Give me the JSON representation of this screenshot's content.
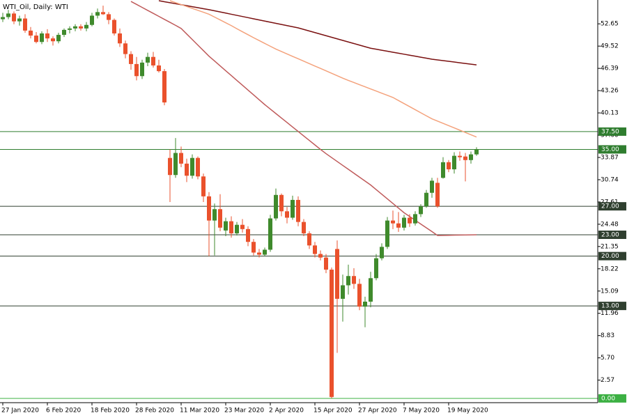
{
  "chart_data": {
    "type": "candlestick",
    "title": "WTI_Oil, Daily:  WTI",
    "categories": [
      "27 Jan 2020",
      null,
      null,
      null,
      null,
      null,
      null,
      null,
      "6 Feb 2020",
      null,
      null,
      null,
      null,
      null,
      null,
      null,
      "18 Feb 2020",
      null,
      null,
      null,
      null,
      null,
      null,
      null,
      "28 Feb 2020",
      null,
      null,
      null,
      null,
      null,
      null,
      null,
      "11 Mar 2020",
      null,
      null,
      null,
      null,
      null,
      null,
      null,
      "23 Mar 2020",
      null,
      null,
      null,
      null,
      null,
      null,
      null,
      "2 Apr 2020",
      null,
      null,
      null,
      null,
      null,
      null,
      null,
      "15 Apr 2020",
      null,
      null,
      null,
      null,
      null,
      null,
      null,
      "27 Apr 2020",
      null,
      null,
      null,
      null,
      null,
      null,
      null,
      "7 May 2020",
      null,
      null,
      null,
      null,
      null,
      null,
      null,
      "19 May 2020",
      null,
      null,
      null,
      null,
      null
    ],
    "open": [
      53.3,
      53.6,
      54.1,
      53.0,
      53.4,
      51.7,
      51.0,
      50.1,
      51.3,
      50.6,
      50.2,
      51.1,
      51.8,
      52.0,
      52.3,
      52.0,
      52.5,
      53.8,
      54.3,
      54.0,
      53.2,
      51.3,
      49.9,
      48.4,
      47.0,
      45.3,
      47.2,
      48.0,
      46.8,
      46.0,
      33.8,
      31.4,
      34.5,
      33.0,
      31.3,
      33.8,
      31.2,
      28.4,
      25.0,
      26.6,
      23.6,
      24.9,
      23.2,
      24.4,
      23.8,
      22.0,
      20.5,
      20.2,
      20.9,
      25.3,
      28.6,
      26.3,
      25.4,
      27.9,
      24.8,
      23.2,
      21.5,
      20.3,
      19.8,
      18.1,
      21.0,
      14.0,
      15.9,
      17.2,
      16.1,
      12.9,
      13.6,
      16.9,
      19.7,
      21.3,
      25.0,
      24.6,
      24.0,
      25.4,
      24.6,
      25.9,
      27.0,
      28.9,
      30.3,
      31.0,
      33.2,
      32.2,
      34.1,
      34.0,
      33.5,
      34.3
    ],
    "high": [
      54.2,
      54.6,
      54.4,
      53.8,
      54.0,
      52.2,
      51.5,
      51.6,
      51.9,
      50.9,
      51.4,
      52.0,
      52.3,
      52.6,
      52.6,
      52.9,
      54.2,
      54.8,
      55.2,
      54.3,
      53.4,
      52.0,
      50.3,
      48.8,
      48.0,
      47.6,
      48.6,
      48.7,
      47.6,
      46.3,
      35.0,
      36.6,
      35.4,
      33.7,
      34.3,
      34.0,
      31.6,
      29.0,
      27.4,
      28.7,
      25.4,
      25.6,
      24.8,
      25.2,
      24.2,
      22.4,
      21.0,
      21.2,
      25.8,
      29.5,
      28.8,
      26.9,
      28.5,
      28.4,
      25.2,
      23.5,
      22.0,
      20.8,
      20.3,
      18.4,
      22.2,
      17.4,
      18.8,
      18.3,
      16.8,
      14.3,
      17.8,
      20.3,
      21.8,
      25.5,
      26.4,
      26.2,
      25.8,
      25.9,
      26.3,
      27.3,
      29.3,
      31.0,
      31.0,
      33.9,
      33.5,
      34.6,
      34.7,
      34.5,
      34.7,
      35.3
    ],
    "low": [
      52.9,
      53.3,
      52.6,
      52.4,
      51.4,
      50.6,
      49.9,
      49.8,
      50.1,
      49.6,
      49.9,
      50.8,
      51.3,
      51.6,
      51.7,
      51.6,
      52.3,
      53.4,
      53.9,
      52.6,
      51.0,
      49.4,
      47.8,
      46.2,
      44.7,
      44.9,
      46.7,
      46.5,
      45.8,
      41.2,
      27.6,
      31.0,
      32.5,
      30.4,
      30.9,
      30.8,
      27.6,
      20.0,
      20.1,
      23.5,
      22.8,
      22.6,
      22.9,
      23.3,
      21.4,
      20.1,
      19.8,
      20.0,
      20.6,
      25.0,
      25.6,
      24.6,
      25.1,
      24.2,
      22.8,
      21.0,
      19.8,
      19.4,
      17.6,
      0.0,
      6.4,
      10.8,
      14.6,
      15.4,
      12.4,
      10.0,
      12.8,
      16.6,
      19.4,
      21.0,
      23.8,
      23.4,
      23.6,
      24.1,
      24.3,
      25.5,
      26.8,
      28.2,
      26.8,
      30.9,
      31.8,
      31.6,
      33.4,
      30.5,
      33.0,
      34.1
    ],
    "close": [
      53.6,
      54.1,
      53.0,
      53.4,
      51.7,
      51.0,
      50.1,
      51.3,
      50.6,
      50.2,
      51.1,
      51.8,
      52.0,
      52.3,
      52.0,
      52.5,
      53.8,
      54.3,
      54.0,
      53.2,
      51.3,
      49.9,
      48.4,
      47.0,
      45.3,
      47.2,
      48.0,
      46.8,
      46.0,
      41.6,
      31.4,
      34.5,
      33.0,
      31.3,
      33.8,
      31.2,
      28.4,
      25.0,
      26.6,
      24.0,
      24.9,
      23.2,
      24.4,
      23.8,
      22.0,
      20.5,
      20.2,
      20.9,
      25.3,
      28.6,
      26.3,
      25.4,
      27.9,
      24.8,
      23.2,
      21.5,
      20.3,
      19.8,
      18.1,
      0.2,
      14.0,
      15.9,
      17.2,
      16.1,
      12.9,
      13.6,
      16.9,
      19.7,
      21.3,
      25.0,
      24.6,
      24.0,
      25.4,
      24.6,
      25.9,
      27.0,
      28.9,
      30.6,
      27.0,
      33.2,
      32.2,
      34.1,
      33.9,
      33.5,
      34.3,
      35.0
    ],
    "up_color": "#3f8a2c",
    "down_color": "#ea512c",
    "lines": [
      {
        "color": "#7a1010",
        "values": [
          null,
          null,
          null,
          null,
          null,
          null,
          null,
          null,
          null,
          null,
          null,
          null,
          null,
          null,
          null,
          null,
          null,
          null,
          null,
          null,
          null,
          null,
          null,
          null,
          null,
          null,
          null,
          null,
          55.9,
          55.76,
          55.62,
          55.48,
          55.34,
          55.2,
          55.06,
          54.92,
          54.78,
          54.64,
          54.48,
          54.32,
          54.16,
          54.0,
          53.84,
          53.68,
          53.52,
          53.36,
          53.2,
          53.04,
          52.88,
          52.72,
          52.56,
          52.4,
          52.24,
          52.08,
          51.86,
          51.64,
          51.42,
          51.2,
          50.98,
          50.76,
          50.54,
          50.32,
          50.1,
          49.88,
          49.66,
          49.44,
          49.22,
          49.08,
          48.94,
          48.8,
          48.66,
          48.52,
          48.38,
          48.24,
          48.1,
          47.96,
          47.82,
          47.68,
          47.58,
          47.48,
          47.38,
          47.28,
          47.18,
          47.08,
          46.98,
          46.88
        ]
      },
      {
        "color": "#f4a27c",
        "values": [
          null,
          null,
          null,
          null,
          null,
          null,
          null,
          null,
          null,
          null,
          null,
          null,
          null,
          null,
          null,
          null,
          null,
          null,
          null,
          null,
          null,
          null,
          null,
          null,
          null,
          null,
          null,
          null,
          null,
          null,
          55.9,
          55.63,
          55.36,
          55.09,
          54.82,
          54.55,
          54.28,
          54.0,
          53.6,
          53.2,
          52.8,
          52.4,
          51.96,
          51.54,
          51.12,
          50.7,
          50.3,
          49.9,
          49.5,
          49.1,
          48.76,
          48.42,
          48.08,
          47.74,
          47.4,
          47.06,
          46.72,
          46.38,
          46.04,
          45.7,
          45.36,
          45.02,
          44.7,
          44.4,
          44.1,
          43.8,
          43.5,
          43.2,
          42.9,
          42.6,
          42.3,
          41.87,
          41.44,
          41.01,
          40.58,
          40.15,
          39.72,
          39.3,
          38.98,
          38.66,
          38.34,
          38.02,
          37.7,
          37.38,
          37.06,
          36.74
        ]
      },
      {
        "color": "#bf5a5a",
        "values": [
          null,
          null,
          null,
          null,
          null,
          null,
          null,
          null,
          null,
          null,
          null,
          null,
          null,
          null,
          null,
          null,
          null,
          null,
          null,
          null,
          null,
          null,
          null,
          55.8,
          55.38,
          54.96,
          54.54,
          54.12,
          53.7,
          53.28,
          52.86,
          52.44,
          52.0,
          51.22,
          50.44,
          49.66,
          48.88,
          48.1,
          47.42,
          46.74,
          46.06,
          45.38,
          44.7,
          44.02,
          43.34,
          42.66,
          41.98,
          41.3,
          40.67,
          40.04,
          39.41,
          38.78,
          38.15,
          37.52,
          36.89,
          36.26,
          35.63,
          35.0,
          34.4,
          33.85,
          33.3,
          32.75,
          32.2,
          31.65,
          31.1,
          30.55,
          30.0,
          29.35,
          28.7,
          28.05,
          27.4,
          26.75,
          26.1,
          25.57,
          25.04,
          24.51,
          23.98,
          23.45,
          22.9,
          22.92,
          22.93,
          22.95,
          22.96,
          22.97,
          22.99,
          23.0
        ]
      }
    ],
    "levels": [
      {
        "value": 37.5,
        "label": "37.50",
        "color": "#2f7d2f"
      },
      {
        "value": 35,
        "label": "35.00",
        "color": "#2f7d2f"
      },
      {
        "value": 27,
        "label": "27.00",
        "color": "#2f3f2f"
      },
      {
        "value": 23,
        "label": "23.00",
        "color": "#2f3f2f"
      },
      {
        "value": 20,
        "label": "20.00",
        "color": "#2f3f2f"
      },
      {
        "value": 13,
        "label": "13.00",
        "color": "#2f3f2f"
      },
      {
        "value": 0,
        "label": "0.00",
        "color": "#3cb043"
      }
    ],
    "ylim": [
      -0.6,
      56
    ],
    "yticks": [
      52.65,
      49.52,
      46.39,
      43.26,
      40.13,
      {
        "value": 37,
        "label": "37.00"
      },
      33.87,
      30.74,
      27.61,
      24.48,
      21.35,
      18.22,
      15.09,
      11.96,
      8.83,
      {
        "value": 5.7,
        "label": "5.70"
      },
      2.57
    ]
  }
}
